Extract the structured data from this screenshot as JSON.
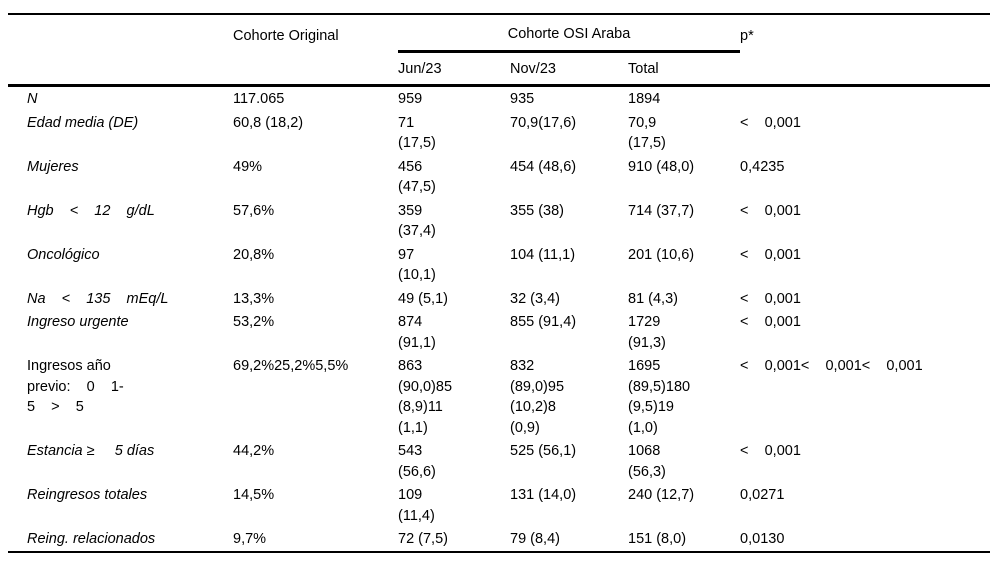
{
  "colors": {
    "background": "#ffffff",
    "text": "#000000",
    "rule": "#000000"
  },
  "table": {
    "header": {
      "col_original": "Cohorte Original",
      "group": "Cohorte OSI Araba",
      "subcols": [
        "Jun/23",
        "Nov/23",
        "Total"
      ],
      "col_p": "p*"
    },
    "rows": [
      {
        "label": "N",
        "italic": true,
        "original": "117.065",
        "jun": "959",
        "nov": "935",
        "total": "1894",
        "p": ""
      },
      {
        "label": "Edad media (DE)",
        "italic": true,
        "original": "60,8 (18,2)",
        "jun": "71\n(17,5)",
        "nov": "70,9(17,6)",
        "total": "70,9\n(17,5)",
        "p": "<    0,001"
      },
      {
        "label": "Mujeres",
        "italic": true,
        "original": "49%",
        "jun": "456\n(47,5)",
        "nov": "454 (48,6)",
        "total": "910 (48,0)",
        "p": "0,4235"
      },
      {
        "label": "Hgb    <    12    g/dL",
        "italic": true,
        "original": "57,6%",
        "jun": "359\n(37,4)",
        "nov": "355 (38)",
        "total": "714 (37,7)",
        "p": "<    0,001"
      },
      {
        "label": "Oncológico",
        "italic": true,
        "original": "20,8%",
        "jun": "97\n(10,1)",
        "nov": "104 (11,1)",
        "total": "201 (10,6)",
        "p": "<    0,001"
      },
      {
        "label": "Na    <    135    mEq/L",
        "italic": true,
        "original": "13,3%",
        "jun": "49 (5,1)",
        "nov": "32 (3,4)",
        "total": "81 (4,3)",
        "p": "<    0,001"
      },
      {
        "label": "Ingreso urgente",
        "italic": true,
        "original": "53,2%",
        "jun": "874\n(91,1)",
        "nov": "855 (91,4)",
        "total": "1729\n(91,3)",
        "p": "<    0,001"
      },
      {
        "label": "Ingresos año\nprevio:    0    1-\n5    >    5",
        "italic": false,
        "original": "69,2%25,2%5,5%",
        "jun": "863\n(90,0)85\n(8,9)11\n(1,1)",
        "nov": "832\n(89,0)95\n(10,2)8\n(0,9)",
        "total": "1695\n(89,5)180\n(9,5)19\n(1,0)",
        "p": "<    0,001<    0,001<    0,001"
      },
      {
        "label": "Estancia ≥     5 días",
        "italic": true,
        "original": "44,2%",
        "jun": "543\n(56,6)",
        "nov": "525 (56,1)",
        "total": "1068\n(56,3)",
        "p": "<    0,001"
      },
      {
        "label": "Reingresos totales",
        "italic": true,
        "original": "14,5%",
        "jun": "109\n(11,4)",
        "nov": "131 (14,0)",
        "total": "240 (12,7)",
        "p": "0,0271"
      },
      {
        "label": "Reing. relacionados",
        "italic": true,
        "original": "9,7%",
        "jun": "72 (7,5)",
        "nov": "79 (8,4)",
        "total": "151 (8,0)",
        "p": "0,0130"
      }
    ]
  }
}
